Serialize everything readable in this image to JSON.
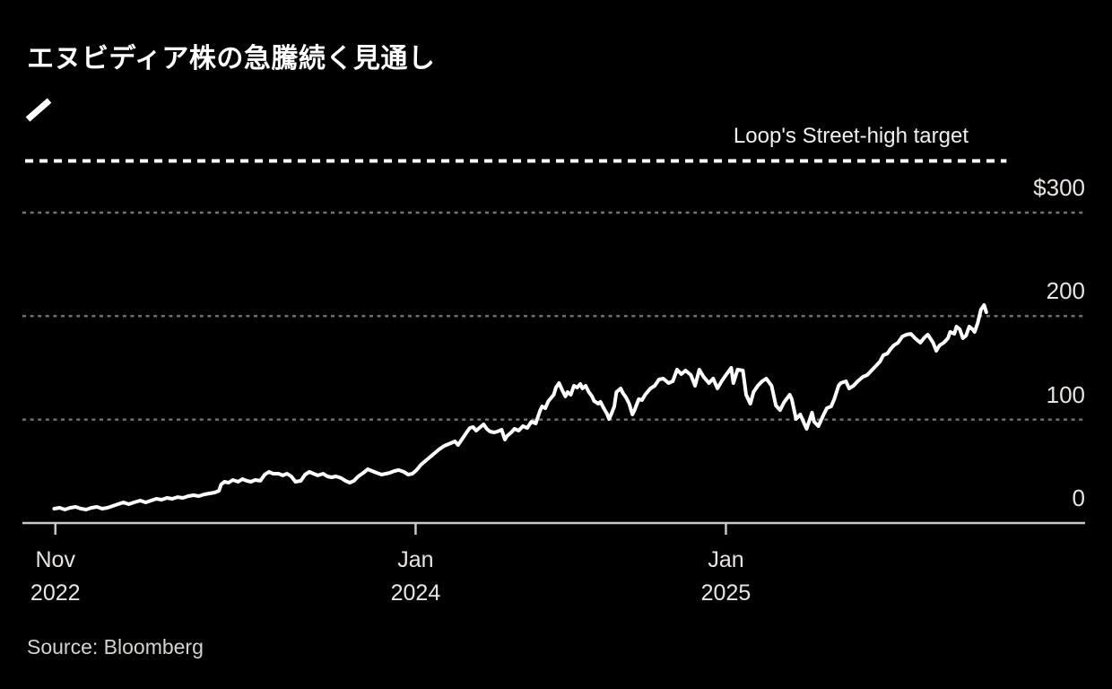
{
  "title": "エヌビディア株の急騰続く見通し",
  "source": "Source: Bloomberg",
  "colors": {
    "background": "#000000",
    "series_line": "#ffffff",
    "target_line": "#ffffff",
    "gridline": "#757575",
    "axis": "#c9c9c9",
    "tick_label": "#e8e5e2",
    "source_text": "#d6d3d0"
  },
  "chart_data": {
    "type": "line",
    "title": "エヌビディア株の急騰続く見通し",
    "currency_prefix": "$",
    "legend_position": "top-left",
    "grid": "horizontal-dotted",
    "annotation": {
      "label": "Loop's Street-high target",
      "value": 350,
      "line_style": "dashed"
    },
    "y_axis": {
      "side": "right",
      "range": [
        0,
        385
      ],
      "ticks": [
        {
          "value": 0,
          "label": "0",
          "gridline": false
        },
        {
          "value": 100,
          "label": "100",
          "gridline": true
        },
        {
          "value": 200,
          "label": "200",
          "gridline": true
        },
        {
          "value": 300,
          "label": "$300",
          "gridline": true
        }
      ]
    },
    "x_axis": {
      "ticks": [
        {
          "t": 0.031,
          "line1": "Nov",
          "line2": "2022"
        },
        {
          "t": 0.37,
          "line1": "Jan",
          "line2": "2024"
        },
        {
          "t": 0.662,
          "line1": "Jan",
          "line2": "2025"
        }
      ]
    },
    "series": [
      {
        "color": "#ffffff",
        "points": [
          [
            0.03,
            13.9
          ],
          [
            0.035,
            14.7
          ],
          [
            0.04,
            13.0
          ],
          [
            0.045,
            14.7
          ],
          [
            0.05,
            15.6
          ],
          [
            0.055,
            13.9
          ],
          [
            0.06,
            13.0
          ],
          [
            0.065,
            14.7
          ],
          [
            0.07,
            15.6
          ],
          [
            0.075,
            13.9
          ],
          [
            0.08,
            14.7
          ],
          [
            0.085,
            16.5
          ],
          [
            0.09,
            18.2
          ],
          [
            0.095,
            19.9
          ],
          [
            0.1,
            18.2
          ],
          [
            0.105,
            19.9
          ],
          [
            0.111,
            21.7
          ],
          [
            0.116,
            19.9
          ],
          [
            0.121,
            21.7
          ],
          [
            0.126,
            23.4
          ],
          [
            0.131,
            22.5
          ],
          [
            0.136,
            24.3
          ],
          [
            0.141,
            23.4
          ],
          [
            0.146,
            25.1
          ],
          [
            0.151,
            24.3
          ],
          [
            0.156,
            26.0
          ],
          [
            0.161,
            26.9
          ],
          [
            0.166,
            26.0
          ],
          [
            0.171,
            27.7
          ],
          [
            0.176,
            28.6
          ],
          [
            0.181,
            29.5
          ],
          [
            0.185,
            31.2
          ],
          [
            0.187,
            37.3
          ],
          [
            0.19,
            39.9
          ],
          [
            0.194,
            39.0
          ],
          [
            0.198,
            41.6
          ],
          [
            0.203,
            39.9
          ],
          [
            0.207,
            42.5
          ],
          [
            0.211,
            40.8
          ],
          [
            0.215,
            39.9
          ],
          [
            0.219,
            41.6
          ],
          [
            0.224,
            40.8
          ],
          [
            0.228,
            46.8
          ],
          [
            0.232,
            49.4
          ],
          [
            0.236,
            47.7
          ],
          [
            0.241,
            47.7
          ],
          [
            0.245,
            46.0
          ],
          [
            0.249,
            47.7
          ],
          [
            0.253,
            45.1
          ],
          [
            0.257,
            39.9
          ],
          [
            0.262,
            40.8
          ],
          [
            0.266,
            46.8
          ],
          [
            0.27,
            49.4
          ],
          [
            0.274,
            47.7
          ],
          [
            0.278,
            46.0
          ],
          [
            0.283,
            47.7
          ],
          [
            0.287,
            45.1
          ],
          [
            0.291,
            44.2
          ],
          [
            0.295,
            45.1
          ],
          [
            0.3,
            43.4
          ],
          [
            0.304,
            40.8
          ],
          [
            0.308,
            39.0
          ],
          [
            0.312,
            40.8
          ],
          [
            0.316,
            45.1
          ],
          [
            0.321,
            48.6
          ],
          [
            0.325,
            52.0
          ],
          [
            0.329,
            50.3
          ],
          [
            0.333,
            48.6
          ],
          [
            0.338,
            46.8
          ],
          [
            0.342,
            47.7
          ],
          [
            0.346,
            48.6
          ],
          [
            0.35,
            50.3
          ],
          [
            0.354,
            51.2
          ],
          [
            0.359,
            49.4
          ],
          [
            0.363,
            46.8
          ],
          [
            0.367,
            47.7
          ],
          [
            0.371,
            51.2
          ],
          [
            0.375,
            56.4
          ],
          [
            0.381,
            61.6
          ],
          [
            0.387,
            66.8
          ],
          [
            0.392,
            71.1
          ],
          [
            0.397,
            74.6
          ],
          [
            0.403,
            77.2
          ],
          [
            0.407,
            78.9
          ],
          [
            0.41,
            75.4
          ],
          [
            0.414,
            81.5
          ],
          [
            0.418,
            87.6
          ],
          [
            0.421,
            91.9
          ],
          [
            0.424,
            92.8
          ],
          [
            0.427,
            89.3
          ],
          [
            0.43,
            91.9
          ],
          [
            0.434,
            95.4
          ],
          [
            0.437,
            91.0
          ],
          [
            0.44,
            88.4
          ],
          [
            0.444,
            87.6
          ],
          [
            0.447,
            88.4
          ],
          [
            0.451,
            90.2
          ],
          [
            0.454,
            80.6
          ],
          [
            0.456,
            84.1
          ],
          [
            0.46,
            87.6
          ],
          [
            0.463,
            91.0
          ],
          [
            0.467,
            89.3
          ],
          [
            0.471,
            93.6
          ],
          [
            0.475,
            91.9
          ],
          [
            0.479,
            98.0
          ],
          [
            0.483,
            96.2
          ],
          [
            0.487,
            108.4
          ],
          [
            0.489,
            112.7
          ],
          [
            0.492,
            111.0
          ],
          [
            0.495,
            117.9
          ],
          [
            0.5,
            124.0
          ],
          [
            0.502,
            130.9
          ],
          [
            0.505,
            135.3
          ],
          [
            0.508,
            128.3
          ],
          [
            0.511,
            122.3
          ],
          [
            0.513,
            126.6
          ],
          [
            0.516,
            124.0
          ],
          [
            0.519,
            132.7
          ],
          [
            0.522,
            130.9
          ],
          [
            0.525,
            134.4
          ],
          [
            0.527,
            130.1
          ],
          [
            0.53,
            132.7
          ],
          [
            0.533,
            126.6
          ],
          [
            0.536,
            122.3
          ],
          [
            0.538,
            117.9
          ],
          [
            0.542,
            115.3
          ],
          [
            0.544,
            117.1
          ],
          [
            0.547,
            111.0
          ],
          [
            0.55,
            105.8
          ],
          [
            0.552,
            100.6
          ],
          [
            0.554,
            104.9
          ],
          [
            0.557,
            112.7
          ],
          [
            0.559,
            126.6
          ],
          [
            0.563,
            130.1
          ],
          [
            0.565,
            125.7
          ],
          [
            0.568,
            121.4
          ],
          [
            0.571,
            115.3
          ],
          [
            0.574,
            104.9
          ],
          [
            0.576,
            109.2
          ],
          [
            0.58,
            119.7
          ],
          [
            0.583,
            118.8
          ],
          [
            0.586,
            124.0
          ],
          [
            0.591,
            130.1
          ],
          [
            0.595,
            132.7
          ],
          [
            0.599,
            138.7
          ],
          [
            0.603,
            139.6
          ],
          [
            0.608,
            135.3
          ],
          [
            0.612,
            137.0
          ],
          [
            0.616,
            148.3
          ],
          [
            0.62,
            143.9
          ],
          [
            0.624,
            147.4
          ],
          [
            0.629,
            143.1
          ],
          [
            0.633,
            132.7
          ],
          [
            0.637,
            148.3
          ],
          [
            0.641,
            141.3
          ],
          [
            0.646,
            135.3
          ],
          [
            0.65,
            139.6
          ],
          [
            0.654,
            130.1
          ],
          [
            0.658,
            137.0
          ],
          [
            0.662,
            143.1
          ],
          [
            0.667,
            150.0
          ],
          [
            0.669,
            135.3
          ],
          [
            0.673,
            148.3
          ],
          [
            0.678,
            147.4
          ],
          [
            0.681,
            124.0
          ],
          [
            0.685,
            115.3
          ],
          [
            0.688,
            126.6
          ],
          [
            0.692,
            132.7
          ],
          [
            0.696,
            137.0
          ],
          [
            0.7,
            139.6
          ],
          [
            0.705,
            132.7
          ],
          [
            0.709,
            113.6
          ],
          [
            0.713,
            109.2
          ],
          [
            0.717,
            117.1
          ],
          [
            0.722,
            124.0
          ],
          [
            0.724,
            119.7
          ],
          [
            0.728,
            100.6
          ],
          [
            0.732,
            104.9
          ],
          [
            0.736,
            95.4
          ],
          [
            0.738,
            91.0
          ],
          [
            0.743,
            106.7
          ],
          [
            0.745,
            98.0
          ],
          [
            0.749,
            93.6
          ],
          [
            0.754,
            104.9
          ],
          [
            0.757,
            111.0
          ],
          [
            0.761,
            112.7
          ],
          [
            0.764,
            119.7
          ],
          [
            0.768,
            132.7
          ],
          [
            0.77,
            135.3
          ],
          [
            0.775,
            137.0
          ],
          [
            0.778,
            130.1
          ],
          [
            0.782,
            132.7
          ],
          [
            0.786,
            137.0
          ],
          [
            0.791,
            141.3
          ],
          [
            0.795,
            143.1
          ],
          [
            0.799,
            147.4
          ],
          [
            0.803,
            151.7
          ],
          [
            0.807,
            156.1
          ],
          [
            0.81,
            162.1
          ],
          [
            0.814,
            163.9
          ],
          [
            0.817,
            168.2
          ],
          [
            0.82,
            171.7
          ],
          [
            0.824,
            174.3
          ],
          [
            0.828,
            180.3
          ],
          [
            0.832,
            182.1
          ],
          [
            0.836,
            182.9
          ],
          [
            0.84,
            178.6
          ],
          [
            0.845,
            174.3
          ],
          [
            0.849,
            179.5
          ],
          [
            0.852,
            182.1
          ],
          [
            0.857,
            174.3
          ],
          [
            0.86,
            166.5
          ],
          [
            0.863,
            171.7
          ],
          [
            0.867,
            174.3
          ],
          [
            0.871,
            178.6
          ],
          [
            0.873,
            184.7
          ],
          [
            0.877,
            182.9
          ],
          [
            0.879,
            189.9
          ],
          [
            0.882,
            187.3
          ],
          [
            0.885,
            178.6
          ],
          [
            0.888,
            181.2
          ],
          [
            0.891,
            189.9
          ],
          [
            0.894,
            187.3
          ],
          [
            0.896,
            184.7
          ],
          [
            0.899,
            193.4
          ],
          [
            0.902,
            206.4
          ],
          [
            0.905,
            210.7
          ],
          [
            0.907,
            203.8
          ]
        ]
      }
    ]
  }
}
